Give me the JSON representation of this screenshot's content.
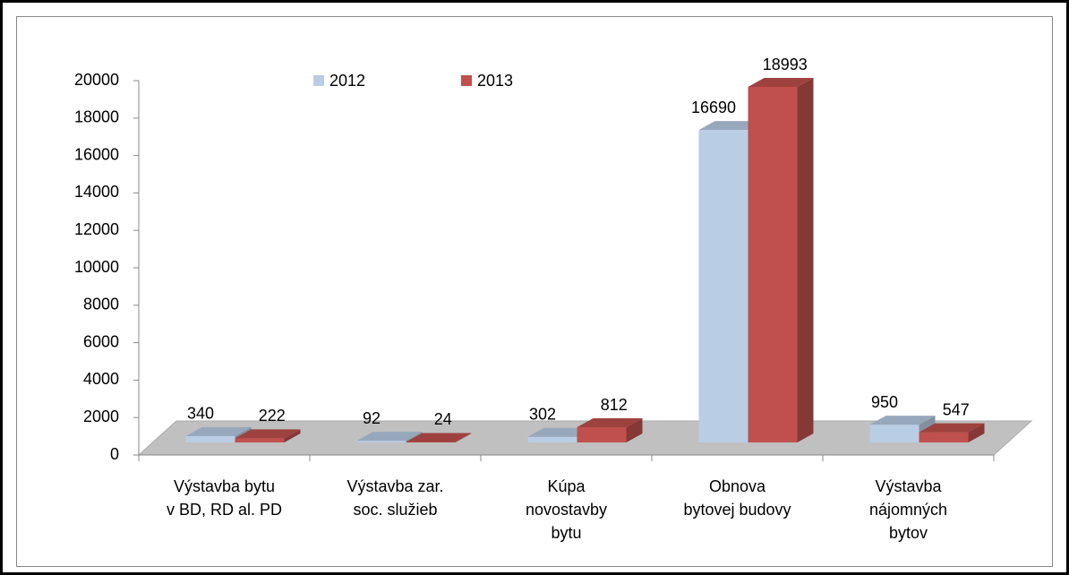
{
  "chart_data": {
    "type": "bar3d",
    "categories": [
      "Výstavba bytu\nv BD, RD al. PD",
      "Výstavba zar.\nsoc. služieb",
      "Kúpa\nnovostavby\nbytu",
      "Obnova\nbytovej budovy",
      "Výstavba\nnájomných\nbytov"
    ],
    "series": [
      {
        "name": "2012",
        "color": "#b9cde5",
        "values": [
          340,
          92,
          302,
          16690,
          950
        ]
      },
      {
        "name": "2013",
        "color": "#c0504d",
        "values": [
          222,
          24,
          812,
          18993,
          547
        ]
      }
    ],
    "ylim": [
      0,
      20000
    ],
    "yticks": [
      0,
      2000,
      4000,
      6000,
      8000,
      10000,
      12000,
      14000,
      16000,
      18000,
      20000
    ],
    "legend": "top",
    "grid": false
  }
}
